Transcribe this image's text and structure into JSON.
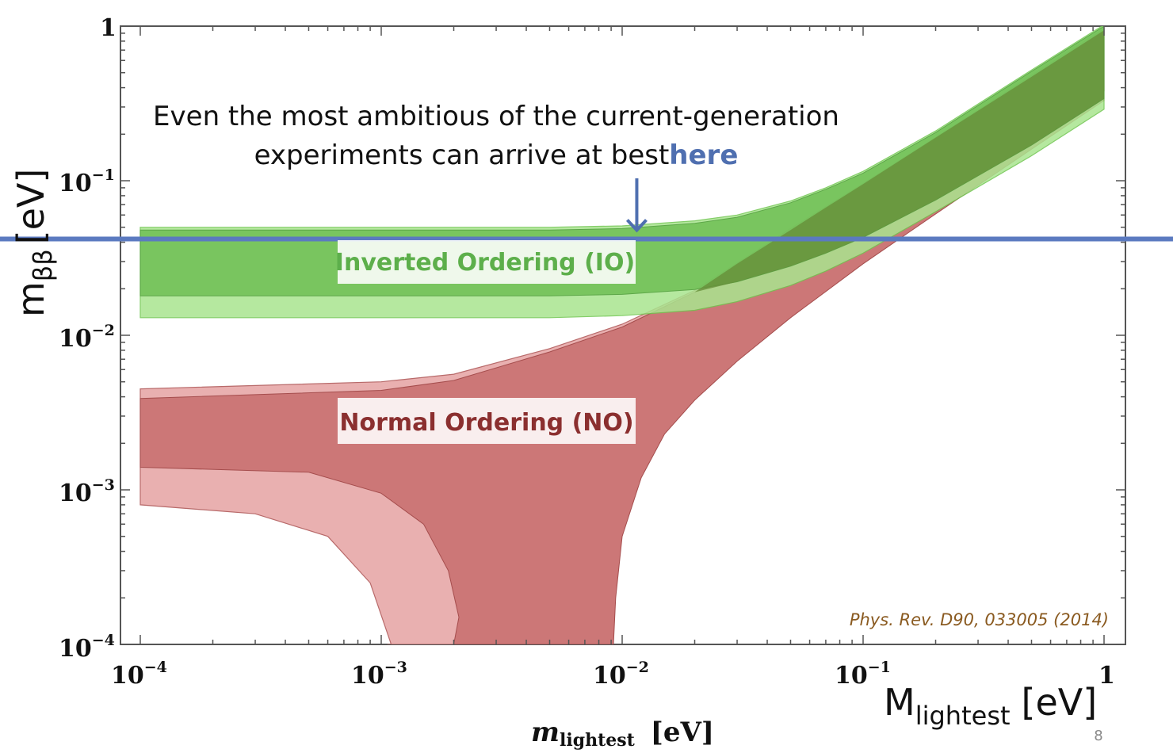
{
  "chart_data": {
    "type": "area",
    "xscale": "log",
    "yscale": "log",
    "xlim": [
      0.0001,
      1
    ],
    "ylim": [
      0.0001,
      1
    ],
    "x_ticks": [
      {
        "base": "10",
        "exp": "−4"
      },
      {
        "base": "10",
        "exp": "−3"
      },
      {
        "base": "10",
        "exp": "−2"
      },
      {
        "base": "10",
        "exp": "−1"
      },
      {
        "base": "1",
        "exp": ""
      }
    ],
    "y_ticks": [
      {
        "base": "1",
        "exp": ""
      },
      {
        "base": "10",
        "exp": "−1"
      },
      {
        "base": "10",
        "exp": "−2"
      },
      {
        "base": "10",
        "exp": "−3"
      },
      {
        "base": "10",
        "exp": "−4"
      }
    ],
    "x_tick_values": [
      0.0001,
      0.001,
      0.01,
      0.1,
      1
    ],
    "y_tick_values": [
      1,
      0.1,
      0.01,
      0.001,
      0.0001
    ],
    "xlabel": {
      "main": "m",
      "sub": "lightest",
      "unit": "[eV]"
    },
    "xlabel_overlay": {
      "main": "M",
      "sub": "lightest",
      "unit": "[eV]"
    },
    "ylabel": {
      "main": "m",
      "sub": "ββ",
      "unit": "[eV]"
    },
    "sensitivity_line_y": 0.042,
    "annotation": {
      "line1": "Even the most ambitious of the current-generation",
      "line2": "experiments  can arrive at best",
      "highlight": "here",
      "arrow_x": 0.0115
    },
    "regions": [
      {
        "name": "Inverted Ordering (IO)",
        "label": "Inverted Ordering (IO)",
        "colors": {
          "outer": "#a9e58f",
          "inner": "#6fbf55",
          "overlap": "#668f3a"
        },
        "outer": {
          "x": [
            0.0001,
            0.001,
            0.005,
            0.01,
            0.02,
            0.03,
            0.05,
            0.07,
            0.1,
            0.2,
            0.5,
            1
          ],
          "upper": [
            0.05,
            0.05,
            0.05,
            0.051,
            0.055,
            0.06,
            0.074,
            0.09,
            0.115,
            0.21,
            0.52,
            1.02
          ],
          "lower": [
            0.013,
            0.013,
            0.013,
            0.0134,
            0.0145,
            0.0165,
            0.021,
            0.026,
            0.034,
            0.063,
            0.145,
            0.29
          ]
        },
        "inner": {
          "x": [
            0.0001,
            0.001,
            0.005,
            0.01,
            0.02,
            0.03,
            0.05,
            0.07,
            0.1,
            0.2,
            0.5,
            1
          ],
          "upper": [
            0.048,
            0.048,
            0.048,
            0.049,
            0.053,
            0.058,
            0.072,
            0.088,
            0.112,
            0.205,
            0.51,
            1.0
          ],
          "lower": [
            0.018,
            0.018,
            0.018,
            0.0184,
            0.0198,
            0.0222,
            0.028,
            0.034,
            0.043,
            0.075,
            0.17,
            0.34
          ]
        }
      },
      {
        "name": "Normal Ordering (NO)",
        "label": "Normal Ordering (NO)",
        "colors": {
          "outer": "#e9b0b0",
          "inner": "#cc7777"
        },
        "outer": {
          "upper_x": [
            0.0001,
            0.001,
            0.002,
            0.005,
            0.01,
            0.02,
            0.05,
            0.1,
            0.2,
            0.5,
            1
          ],
          "upper_y": [
            0.0045,
            0.005,
            0.0056,
            0.0082,
            0.0118,
            0.0195,
            0.049,
            0.096,
            0.19,
            0.48,
            0.96
          ],
          "lower_x": [
            0.0001,
            0.0003,
            0.0006,
            0.0009,
            0.0011,
            0.00106,
            0.0065,
            0.0066,
            0.007,
            0.008,
            0.01,
            0.012,
            0.015,
            0.02,
            0.03,
            0.05,
            0.1,
            0.2,
            0.5,
            1
          ],
          "lower_y": [
            0.0008,
            0.0007,
            0.0005,
            0.00025,
            0.0001,
            0.0001,
            0.0001,
            0.00015,
            0.00035,
            0.0007,
            0.0015,
            0.0024,
            0.0038,
            0.0058,
            0.0098,
            0.018,
            0.037,
            0.075,
            0.19,
            0.38
          ]
        },
        "inner": {
          "upper_x": [
            0.0001,
            0.001,
            0.002,
            0.005,
            0.01,
            0.02,
            0.05,
            0.1,
            0.2,
            0.5,
            1
          ],
          "upper_y": [
            0.0039,
            0.0044,
            0.0051,
            0.0078,
            0.0113,
            0.019,
            0.048,
            0.095,
            0.19,
            0.47,
            0.94
          ],
          "lower_x": [
            0.0001,
            0.0005,
            0.001,
            0.0015,
            0.0019,
            0.0021,
            0.002,
            0.0092,
            0.0094,
            0.01,
            0.012,
            0.015,
            0.02,
            0.03,
            0.05,
            0.1,
            0.2,
            0.5,
            1
          ],
          "lower_y": [
            0.0014,
            0.0013,
            0.00095,
            0.0006,
            0.0003,
            0.00015,
            0.0001,
            0.0001,
            0.0002,
            0.0005,
            0.0012,
            0.0023,
            0.0038,
            0.0068,
            0.013,
            0.029,
            0.061,
            0.16,
            0.33
          ]
        }
      }
    ],
    "reference": "Phys. Rev. D90, 033005 (2014)"
  },
  "slide_number": "8"
}
